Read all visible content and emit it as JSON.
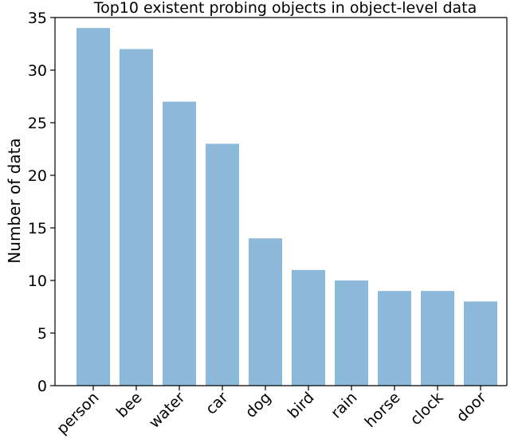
{
  "chart_data": {
    "type": "bar",
    "title": "Top10 existent probing objects in object-level data",
    "xlabel": "",
    "ylabel": "Number of data",
    "categories": [
      "person",
      "bee",
      "water",
      "car",
      "dog",
      "bird",
      "rain",
      "horse",
      "clock",
      "door"
    ],
    "values": [
      34,
      32,
      27,
      23,
      14,
      11,
      10,
      9,
      9,
      8
    ],
    "ylim": [
      0,
      35
    ],
    "yticks": [
      0,
      5,
      10,
      15,
      20,
      25,
      30,
      35
    ],
    "bar_color": "#8cb8da",
    "grid": false,
    "legend": "none"
  }
}
